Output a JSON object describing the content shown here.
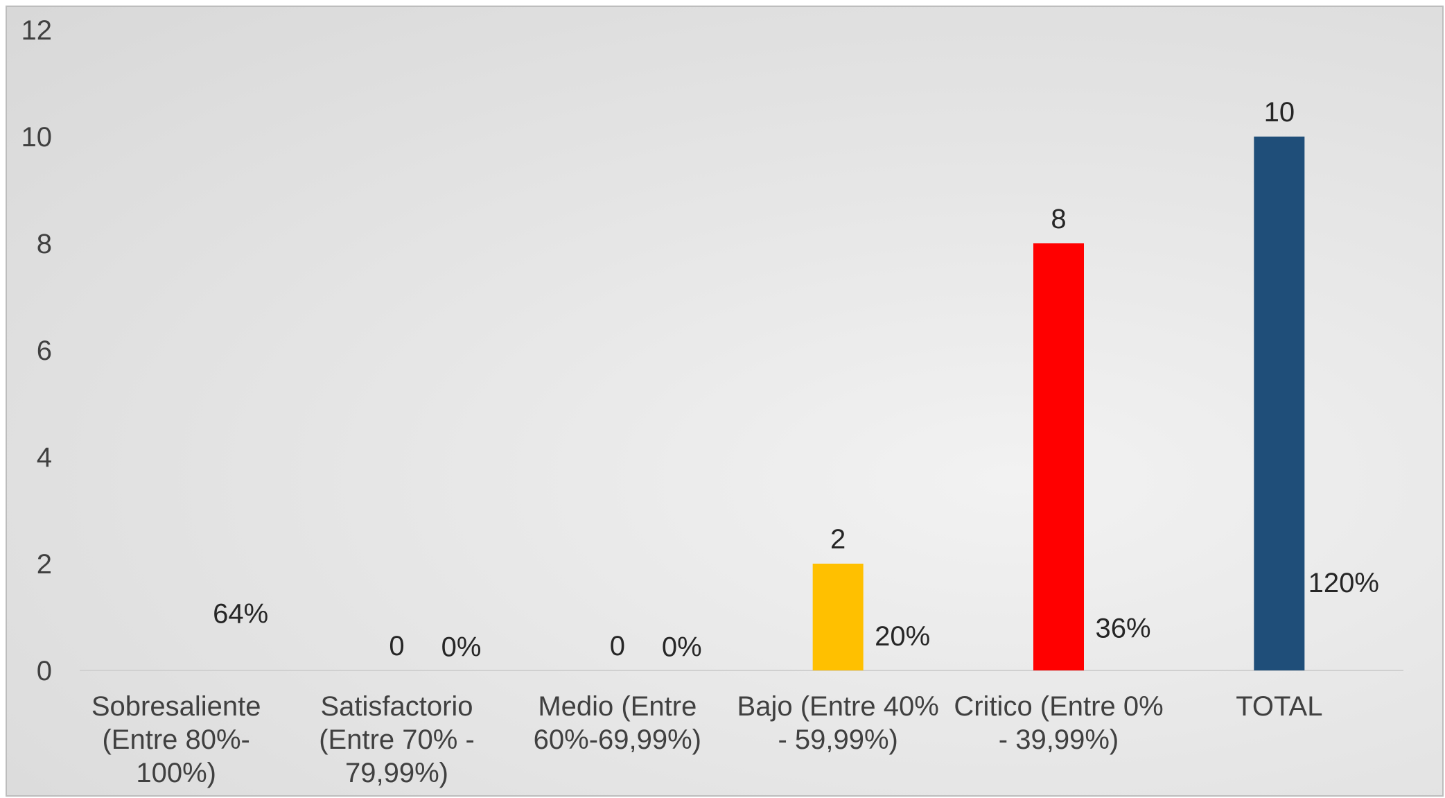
{
  "chart_data": {
    "type": "bar",
    "categories": [
      [
        "Sobresaliente",
        "(Entre 80%-",
        "100%)"
      ],
      [
        "Satisfactorio",
        "(Entre 70% -",
        "79,99%)"
      ],
      [
        "Medio (Entre",
        "60%-69,99%)"
      ],
      [
        "Bajo (Entre 40%",
        "- 59,99%)"
      ],
      [
        "Critico (Entre 0%",
        "- 39,99%)"
      ],
      [
        "TOTAL"
      ]
    ],
    "values": [
      null,
      0,
      0,
      2,
      8,
      10
    ],
    "value_labels": [
      "",
      "0",
      "0",
      "2",
      "8",
      "10"
    ],
    "percent_labels": [
      "64%",
      "0%",
      "0%",
      "20%",
      "36%",
      "120%"
    ],
    "percent_label_values": [
      1.07,
      0.45,
      0.45,
      0.65,
      0.8,
      1.65
    ],
    "bar_colors": [
      "#FFC000",
      "#FFC000",
      "#FFC000",
      "#FFC000",
      "#FF0000",
      "#1F4E79"
    ],
    "yticks": [
      "0",
      "2",
      "4",
      "6",
      "8",
      "10",
      "12"
    ],
    "ylim": [
      0,
      12
    ],
    "grid": false,
    "legend": "none"
  }
}
